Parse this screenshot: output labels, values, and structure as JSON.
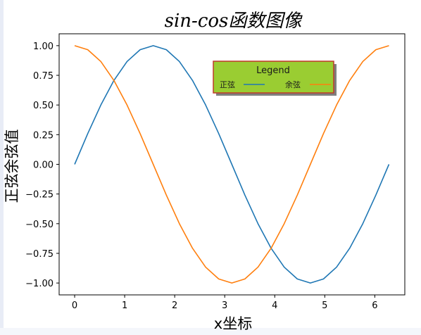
{
  "chart_data": {
    "type": "line",
    "title": "sin-cos函数图像",
    "xlabel": "x坐标",
    "ylabel": "正弦余弦值",
    "xlim": [
      -0.31,
      6.6
    ],
    "ylim": [
      -1.1,
      1.1
    ],
    "xticks": [
      0,
      1,
      2,
      3,
      4,
      5,
      6
    ],
    "yticks": [
      -1.0,
      -0.75,
      -0.5,
      -0.25,
      0.0,
      0.25,
      0.5,
      0.75,
      1.0
    ],
    "xtick_labels": [
      "0",
      "1",
      "2",
      "3",
      "4",
      "5",
      "6"
    ],
    "ytick_labels": [
      "−1.00",
      "−0.75",
      "−0.50",
      "−0.25",
      "0.00",
      "0.25",
      "0.50",
      "0.75",
      "1.00"
    ],
    "grid": false,
    "legend": {
      "title": "Legend",
      "placement": "upper-center-right",
      "background": "#9acd32",
      "edge": "#c0392b",
      "shadow": true
    },
    "series": [
      {
        "name": "正弦",
        "color": "#1f77b4",
        "x": [
          0.0,
          0.262,
          0.524,
          0.785,
          1.047,
          1.309,
          1.571,
          1.833,
          2.094,
          2.356,
          2.618,
          2.88,
          3.142,
          3.403,
          3.665,
          3.927,
          4.189,
          4.451,
          4.712,
          4.974,
          5.236,
          5.498,
          5.76,
          6.021,
          6.283
        ],
        "y": [
          0.0,
          0.259,
          0.5,
          0.707,
          0.866,
          0.966,
          1.0,
          0.966,
          0.866,
          0.707,
          0.5,
          0.259,
          0.0,
          -0.259,
          -0.5,
          -0.707,
          -0.866,
          -0.966,
          -1.0,
          -0.966,
          -0.866,
          -0.707,
          -0.5,
          -0.259,
          0.0
        ]
      },
      {
        "name": "余弦",
        "color": "#ff7f0e",
        "x": [
          0.0,
          0.262,
          0.524,
          0.785,
          1.047,
          1.309,
          1.571,
          1.833,
          2.094,
          2.356,
          2.618,
          2.88,
          3.142,
          3.403,
          3.665,
          3.927,
          4.189,
          4.451,
          4.712,
          4.974,
          5.236,
          5.498,
          5.76,
          6.021,
          6.283
        ],
        "y": [
          1.0,
          0.966,
          0.866,
          0.707,
          0.5,
          0.259,
          0.0,
          -0.259,
          -0.5,
          -0.707,
          -0.866,
          -0.966,
          -1.0,
          -0.966,
          -0.866,
          -0.707,
          -0.5,
          -0.259,
          0.0,
          0.259,
          0.5,
          0.707,
          0.866,
          0.966,
          1.0
        ]
      }
    ]
  }
}
